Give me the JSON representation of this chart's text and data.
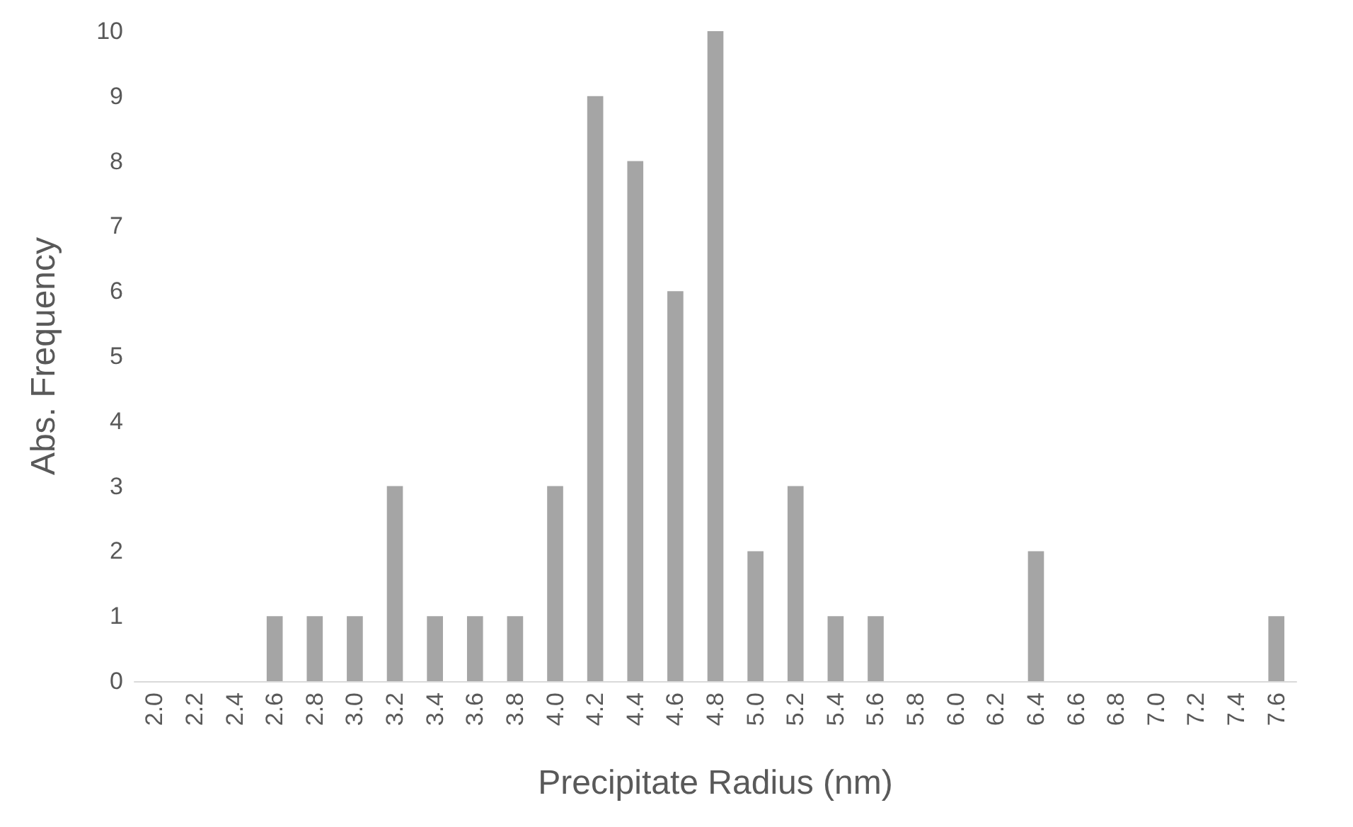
{
  "chart_data": {
    "type": "bar",
    "xlabel": "Precipitate Radius (nm)",
    "ylabel": "Abs. Frequency",
    "categories": [
      "2.0",
      "2.2",
      "2.4",
      "2.6",
      "2.8",
      "3.0",
      "3.2",
      "3.4",
      "3.6",
      "3.8",
      "4.0",
      "4.2",
      "4.4",
      "4.6",
      "4.8",
      "5.0",
      "5.2",
      "5.4",
      "5.6",
      "5.8",
      "6.0",
      "6.2",
      "6.4",
      "6.6",
      "6.8",
      "7.0",
      "7.2",
      "7.4",
      "7.6"
    ],
    "values": [
      0,
      0,
      0,
      1,
      1,
      1,
      3,
      1,
      1,
      1,
      3,
      9,
      8,
      6,
      10,
      2,
      3,
      1,
      1,
      0,
      0,
      0,
      2,
      0,
      0,
      0,
      0,
      0,
      1
    ],
    "color": "#a5a5a5",
    "ylim": [
      0,
      10
    ],
    "yticks": [
      0,
      1,
      2,
      3,
      4,
      5,
      6,
      7,
      8,
      9,
      10
    ],
    "grid": false
  }
}
